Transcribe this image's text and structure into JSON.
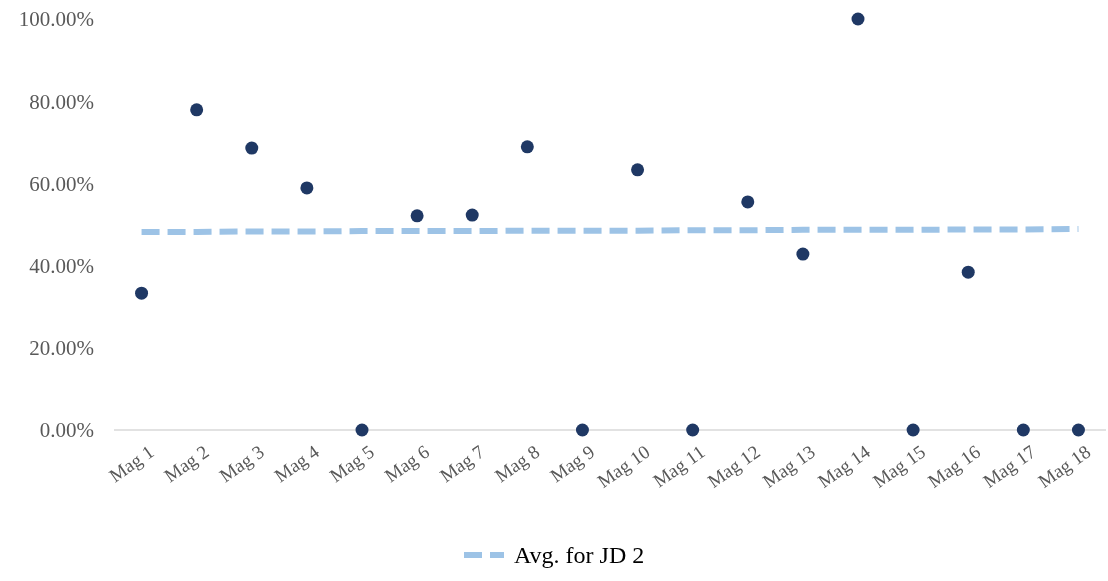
{
  "chart_data": {
    "type": "scatter",
    "categories": [
      "Mag 1",
      "Mag 2",
      "Mag 3",
      "Mag 4",
      "Mag 5",
      "Mag 6",
      "Mag 7",
      "Mag 8",
      "Mag 9",
      "Mag 10",
      "Mag 11",
      "Mag 12",
      "Mag 13",
      "Mag 14",
      "Mag 15",
      "Mag 16",
      "Mag 17",
      "Mag 18"
    ],
    "series": [
      {
        "color": "#1f3864",
        "marker": "circle",
        "values": [
          33.3,
          77.9,
          68.6,
          58.9,
          0,
          52.1,
          52.3,
          68.9,
          0,
          63.3,
          0,
          55.5,
          42.8,
          100,
          0,
          38.4,
          0,
          0
        ]
      },
      {
        "type": "line",
        "name": "Avg. for JD 2",
        "color": "#9dc3e6",
        "line_style": "dashed",
        "marker": "none",
        "values": [
          48.2,
          48.2,
          48.3,
          48.3,
          48.4,
          48.4,
          48.4,
          48.5,
          48.5,
          48.5,
          48.6,
          48.6,
          48.7,
          48.7,
          48.7,
          48.8,
          48.8,
          48.9
        ]
      }
    ],
    "ylim": [
      0,
      100
    ],
    "yticks": [
      {
        "value": 0,
        "label": "0.00%"
      },
      {
        "value": 20,
        "label": "20.00%"
      },
      {
        "value": 40,
        "label": "40.00%"
      },
      {
        "value": 60,
        "label": "60.00%"
      },
      {
        "value": 80,
        "label": "80.00%"
      },
      {
        "value": 100,
        "label": "100.00%"
      }
    ],
    "grid": false,
    "legend": "bottom"
  }
}
